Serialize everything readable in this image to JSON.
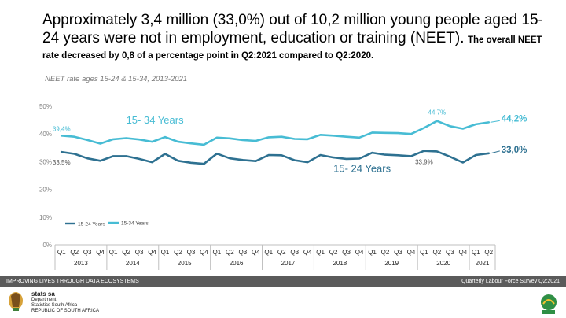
{
  "header": {
    "headline": "Approximately 3,4 million (33,0%) out of 10,2 million young people aged 15-24 years were not in employment, education or training (NEET).",
    "subheadline": "The overall NEET rate decreased by 0,8 of a percentage point in Q2:2021 compared to Q2:2020.",
    "chart_subtitle": "NEET rate ages 15-24 & 15-34, 2013-2021"
  },
  "footer": {
    "left": "IMPROVING LIVES THROUGH DATA ECOSYSTEMS",
    "right": "Quarterly Labour Force Survey Q2:2021"
  },
  "logo": {
    "name": "stats sa",
    "line1": "Department:",
    "line2": "Statistics South Africa",
    "line3": "REPUBLIC OF SOUTH AFRICA"
  },
  "colors": {
    "series_15_24": "#2e7191",
    "series_15_34": "#47bcd4",
    "axis_text": "#7f7f7f"
  },
  "chart_data": {
    "type": "line",
    "quarters": [
      "Q1",
      "Q2",
      "Q3",
      "Q4",
      "Q1",
      "Q2",
      "Q3",
      "Q4",
      "Q1",
      "Q2",
      "Q3",
      "Q4",
      "Q1",
      "Q2",
      "Q3",
      "Q4",
      "Q1",
      "Q2",
      "Q3",
      "Q4",
      "Q1",
      "Q2",
      "Q3",
      "Q4",
      "Q1",
      "Q2",
      "Q3",
      "Q4",
      "Q1",
      "Q2",
      "Q3",
      "Q4",
      "Q1",
      "Q2"
    ],
    "years": [
      {
        "label": "2013",
        "count": 4
      },
      {
        "label": "2014",
        "count": 4
      },
      {
        "label": "2015",
        "count": 4
      },
      {
        "label": "2016",
        "count": 4
      },
      {
        "label": "2017",
        "count": 4
      },
      {
        "label": "2018",
        "count": 4
      },
      {
        "label": "2019",
        "count": 4
      },
      {
        "label": "2020",
        "count": 4
      },
      {
        "label": "2021",
        "count": 2
      }
    ],
    "yticks": [
      "0%",
      "10%",
      "20%",
      "30%",
      "40%",
      "50%"
    ],
    "ylim": [
      0,
      50
    ],
    "series": [
      {
        "name": "15-24 Years",
        "inline_label": "15- 24 Years",
        "values": [
          33.5,
          32.8,
          31.2,
          30.3,
          32.0,
          32.0,
          31.0,
          29.8,
          32.8,
          30.3,
          29.6,
          29.2,
          32.9,
          31.2,
          30.6,
          30.2,
          32.4,
          32.3,
          30.5,
          29.8,
          32.4,
          31.5,
          31.0,
          31.1,
          33.2,
          32.5,
          32.3,
          32.0,
          33.9,
          33.7,
          31.8,
          29.7,
          32.4,
          33.0
        ]
      },
      {
        "name": "15-34 Years",
        "inline_label": "15- 34 Years",
        "values": [
          39.4,
          39.0,
          37.8,
          36.5,
          38.1,
          38.5,
          38.0,
          37.2,
          38.9,
          37.2,
          36.6,
          36.1,
          38.7,
          38.4,
          37.8,
          37.5,
          38.8,
          39.0,
          38.2,
          38.1,
          39.7,
          39.4,
          39.0,
          38.7,
          40.5,
          40.4,
          40.3,
          40.0,
          42.2,
          44.7,
          42.8,
          41.9,
          43.5,
          44.2
        ]
      }
    ],
    "annotations": {
      "s1_first": "33,5%",
      "s1_peak": "33,9%",
      "s1_last": "33,0%",
      "s2_first": "39,4%",
      "s2_peak": "44,7%",
      "s2_last": "44,2%"
    },
    "legend_position": "bottom-left",
    "grid": false
  }
}
